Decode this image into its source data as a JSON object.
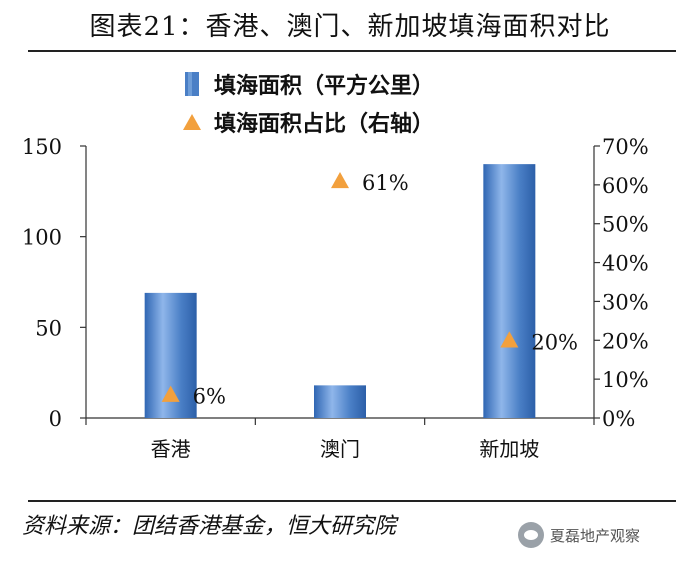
{
  "header": {
    "title": "图表21：香港、澳门、新加坡填海面积对比"
  },
  "legend": {
    "items": [
      {
        "label": "填海面积（平方公里）",
        "marker": "bar",
        "color": "#4a7fc6"
      },
      {
        "label": "填海面积占比（右轴）",
        "marker": "triangle",
        "color": "#f2a03d"
      }
    ]
  },
  "footer": {
    "source": "资料来源：团结香港基金，恒大研究院",
    "watermark": "夏磊地产观察"
  },
  "chart_data": {
    "type": "bar",
    "categories": [
      "香港",
      "澳门",
      "新加坡"
    ],
    "series": [
      {
        "name": "填海面积（平方公里）",
        "type": "bar",
        "axis": "left",
        "values": [
          69,
          18,
          140
        ],
        "color": "#4a7fc6"
      },
      {
        "name": "填海面积占比（右轴）",
        "type": "scatter",
        "marker": "triangle",
        "axis": "right",
        "values": [
          0.06,
          0.61,
          0.2
        ],
        "labels": [
          "6%",
          "61%",
          "20%"
        ],
        "color": "#f2a03d"
      }
    ],
    "y_left": {
      "min": 0,
      "max": 150,
      "ticks": [
        "0",
        "50",
        "100",
        "150"
      ]
    },
    "y_right": {
      "min": 0,
      "max": 0.7,
      "ticks": [
        "0%",
        "10%",
        "20%",
        "30%",
        "40%",
        "50%",
        "60%",
        "70%"
      ]
    },
    "grid": false,
    "legend_position": "top"
  }
}
